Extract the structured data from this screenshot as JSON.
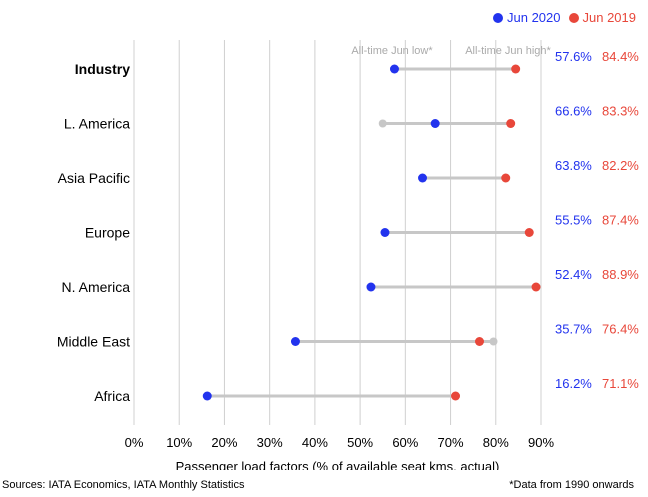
{
  "chart_data": {
    "type": "dumbbell",
    "xlabel": "Passenger load factors (% of available seat kms, actual)",
    "xlim": [
      0,
      90
    ],
    "x_ticks": [
      "0%",
      "10%",
      "20%",
      "30%",
      "40%",
      "50%",
      "60%",
      "70%",
      "80%",
      "90%"
    ],
    "grid": "vertical",
    "legend": {
      "placement": "top-right",
      "entries": [
        {
          "name": "Jun 2020",
          "color": "#2233ee"
        },
        {
          "name": "Jun 2019",
          "color": "#e8473a"
        }
      ]
    },
    "categories": [
      "Industry",
      "L. America",
      "Asia Pacific",
      "Europe",
      "N. America",
      "Middle East",
      "Africa"
    ],
    "bold_category": "Industry",
    "series": [
      {
        "name": "Jun 2020",
        "color": "#2233ee",
        "values": [
          57.6,
          66.6,
          63.8,
          55.5,
          52.4,
          35.7,
          16.2
        ],
        "labels": [
          "57.6%",
          "66.6%",
          "63.8%",
          "55.5%",
          "52.4%",
          "35.7%",
          "16.2%"
        ]
      },
      {
        "name": "Jun 2019",
        "color": "#e8473a",
        "values": [
          84.4,
          83.3,
          82.2,
          87.4,
          88.9,
          76.4,
          71.1
        ],
        "labels": [
          "84.4%",
          "83.3%",
          "82.2%",
          "87.4%",
          "88.9%",
          "76.4%",
          "71.1%"
        ]
      }
    ],
    "all_time_low_label": "All-time Jun low*",
    "all_time_high_label": "All-time Jun high*",
    "all_time_low": [
      null,
      55,
      null,
      null,
      null,
      null,
      null
    ],
    "all_time_high": [
      null,
      null,
      null,
      null,
      null,
      79.5,
      null
    ],
    "range_color": "#c7c7c7",
    "grid_color": "#d0d0d0"
  },
  "footer": {
    "source": "Sources: IATA Economics, IATA Monthly Statistics",
    "note": "*Data from 1990 onwards"
  }
}
